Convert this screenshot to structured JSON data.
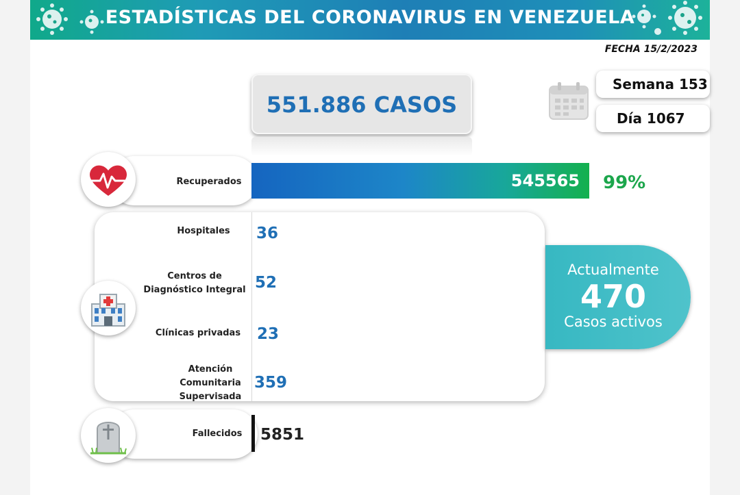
{
  "header": {
    "title": "ESTADÍSTICAS DEL CORONAVIRUS EN VENEZUELA"
  },
  "fecha": "FECHA 15/2/2023",
  "casos": "551.886 CASOS",
  "semana": "Semana 153",
  "dia": "Día 1067",
  "recuperados": {
    "label": "Recuperados",
    "value": "545565",
    "percent": "99%"
  },
  "hospitalizacion": [
    {
      "label": "Hospitales",
      "value": "36"
    },
    {
      "label": "Centros de Diagnóstico Integral",
      "value": "52"
    },
    {
      "label": "Clínicas privadas",
      "value": "23"
    },
    {
      "label": "Atención Comunitaria Supervisada",
      "value": "359"
    }
  ],
  "activos": {
    "line1": "Actualmente",
    "value": "470",
    "line2": "Casos activos"
  },
  "fallecidos": {
    "label": "Fallecidos",
    "value": "5851"
  },
  "colors": {
    "blue": "#1f6fb5",
    "green": "#1ca64c",
    "teal": "#3fbdc6"
  },
  "icons": {
    "recuperados": "heart-pulse-icon",
    "hospital": "hospital-icon",
    "fallecidos": "tombstone-icon",
    "calendar": "calendar-icon",
    "banner": "virus-icon"
  }
}
